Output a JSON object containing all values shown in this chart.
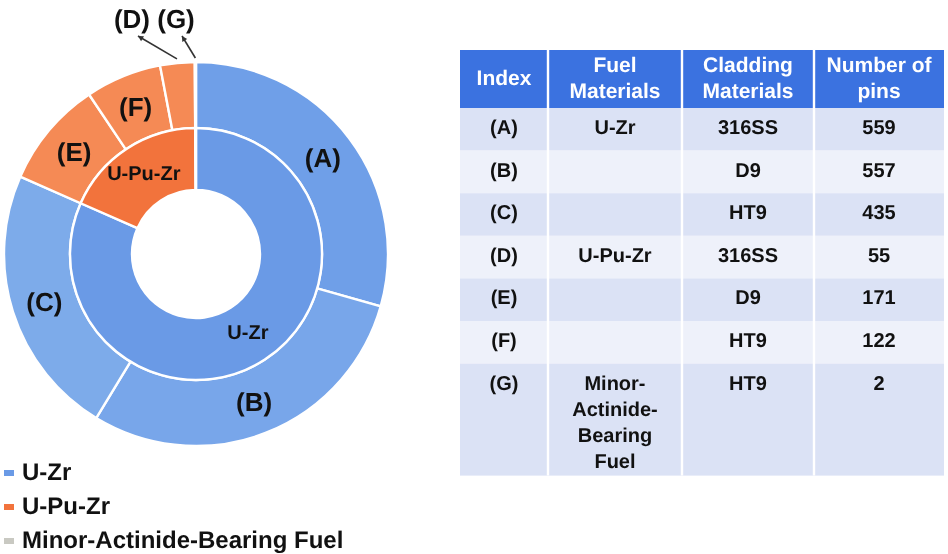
{
  "chart_data": [
    {
      "type": "donut",
      "categories": [
        "(A)",
        "(B)",
        "(C)",
        "(E)",
        "(F)",
        "(D)",
        "(G)"
      ],
      "values": [
        29.4,
        29.3,
        22.9,
        9.0,
        6.4,
        2.9,
        0.1
      ],
      "colors": [
        "#6f9fe8",
        "#78a6ea",
        "#7dabea",
        "#f58a55",
        "#f58a55",
        "#f58a55",
        "#c9c9c2"
      ]
    },
    {
      "type": "donut",
      "categories": [
        "U-Zr",
        "U-Pu-Zr",
        "Minor-Actinide-Bearing Fuel"
      ],
      "values": [
        81.6,
        18.3,
        0.1
      ],
      "colors": [
        "#6a9ae6",
        "#f2733c",
        "#c9c9c2"
      ],
      "legend": "bottom"
    },
    {
      "type": "other",
      "categories": [
        "Index",
        "Fuel Materials",
        "Cladding Materials",
        "Number of pins"
      ],
      "cell_labels": [
        [
          "(A)",
          "U-Zr",
          "316SS",
          "559"
        ],
        [
          "(B)",
          null,
          "D9",
          "557"
        ],
        [
          "(C)",
          null,
          "HT9",
          "435"
        ],
        [
          "(D)",
          "U-Pu-Zr",
          "316SS",
          "55"
        ],
        [
          "(E)",
          null,
          "D9",
          "171"
        ],
        [
          "(F)",
          null,
          "HT9",
          "122"
        ],
        [
          "(G)",
          "Minor-Actinide-Bearing Fuel",
          "HT9",
          "2"
        ]
      ]
    }
  ]
}
